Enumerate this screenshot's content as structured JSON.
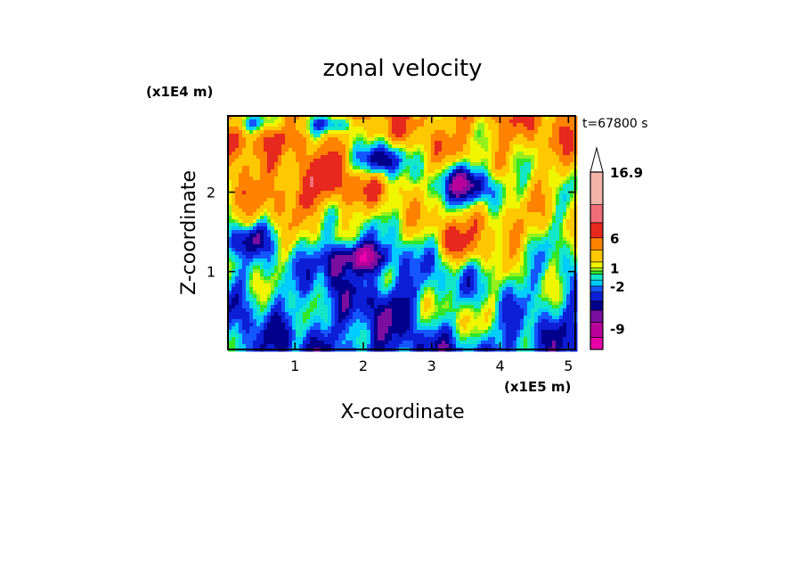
{
  "chart_data": {
    "type": "heatmap",
    "title": "zonal velocity",
    "xlabel": "X-coordinate",
    "ylabel": "Z-coordinate",
    "x_unit": "(x1E5 m)",
    "y_unit": "(x1E4 m)",
    "time_label": "t=67800 s",
    "xlim": [
      0.02,
      5.1
    ],
    "ylim": [
      0.02,
      2.96
    ],
    "x_ticks": [
      1,
      2,
      3,
      4,
      5
    ],
    "x_tick_labels": [
      "1",
      "2",
      "3",
      "4",
      "5"
    ],
    "y_ticks": [
      1,
      2
    ],
    "y_tick_labels": [
      "1",
      "2"
    ],
    "colorbar": {
      "levels_min": -12.5,
      "levels_max": 16.9,
      "extend": "max",
      "labels": [
        {
          "value": 16.9,
          "text": "16.9"
        },
        {
          "value": 6,
          "text": "6"
        },
        {
          "value": 1,
          "text": "1"
        },
        {
          "value": -2,
          "text": "-2"
        },
        {
          "value": -9,
          "text": "-9"
        }
      ],
      "bands": [
        {
          "from": -12.5,
          "to": -10.5,
          "color": "#e800a8"
        },
        {
          "from": -10.5,
          "to": -8.0,
          "color": "#b8009a"
        },
        {
          "from": -8.0,
          "to": -6.0,
          "color": "#7a0ea0"
        },
        {
          "from": -6.0,
          "to": -4.5,
          "color": "#00008c"
        },
        {
          "from": -4.5,
          "to": -3.0,
          "color": "#0c1ed6"
        },
        {
          "from": -3.0,
          "to": -2.0,
          "color": "#1456ff"
        },
        {
          "from": -2.0,
          "to": -1.0,
          "color": "#00ccff"
        },
        {
          "from": -1.0,
          "to": 0.0,
          "color": "#14e6c8"
        },
        {
          "from": 0.0,
          "to": 0.5,
          "color": "#32e628"
        },
        {
          "from": 0.5,
          "to": 1.0,
          "color": "#96f01e"
        },
        {
          "from": 1.0,
          "to": 2.0,
          "color": "#f0f500"
        },
        {
          "from": 2.0,
          "to": 4.0,
          "color": "#ffc800"
        },
        {
          "from": 4.0,
          "to": 6.0,
          "color": "#ff8200"
        },
        {
          "from": 6.0,
          "to": 8.5,
          "color": "#e6281e"
        },
        {
          "from": 8.5,
          "to": 11.5,
          "color": "#f06e78"
        },
        {
          "from": 11.5,
          "to": 16.9,
          "color": "#f5b4a8"
        }
      ]
    }
  }
}
